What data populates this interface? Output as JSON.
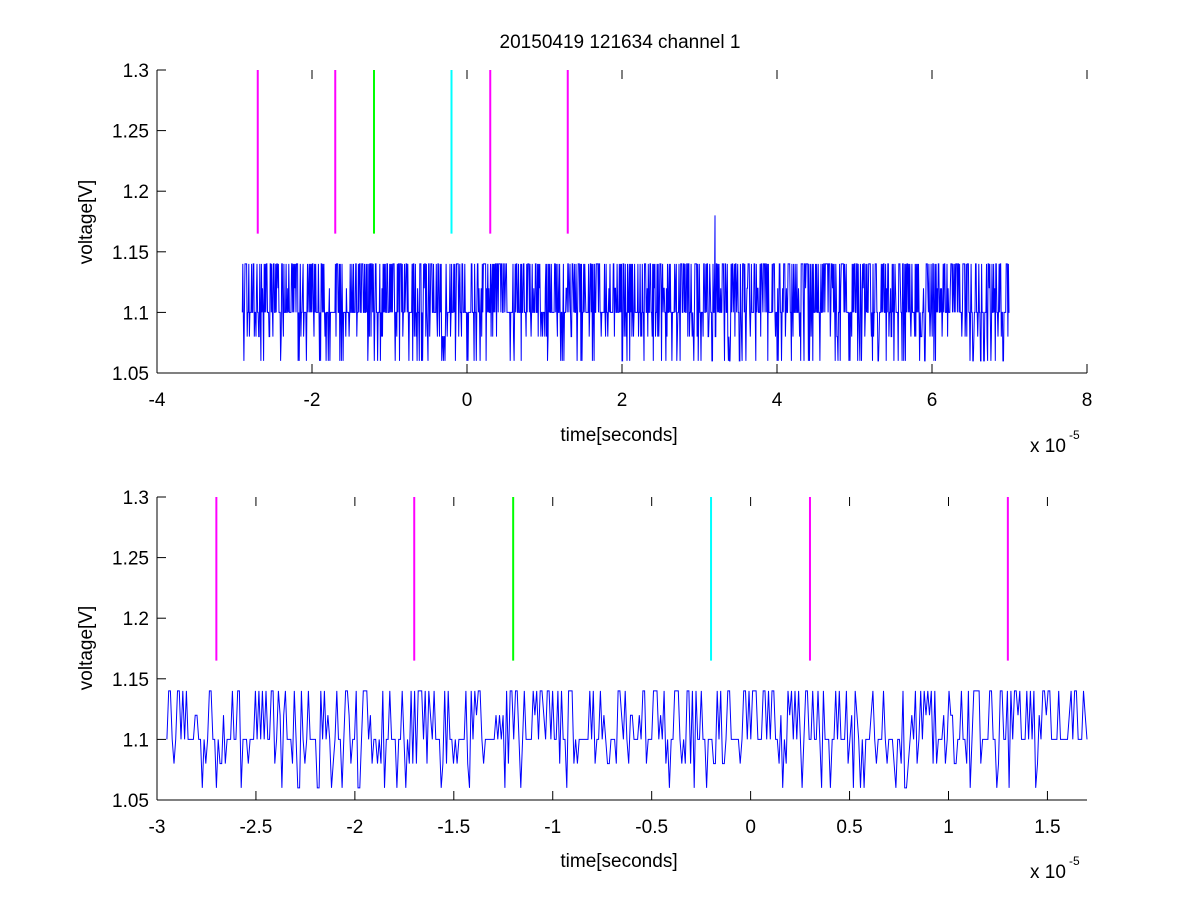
{
  "figure": {
    "title": "20150419 121634 channel 1"
  },
  "chart_data": [
    {
      "type": "line",
      "title": "20150419 121634 channel 1",
      "xlabel": "time[seconds]",
      "ylabel": "voltage[V]",
      "x_multiplier_label": "x 10",
      "x_multiplier_exponent": "-5",
      "xlim": [
        -4,
        8
      ],
      "ylim": [
        1.05,
        1.3
      ],
      "xticks": [
        "-4",
        "-2",
        "0",
        "2",
        "4",
        "6",
        "8"
      ],
      "yticks": [
        "1.05",
        "1.1",
        "1.15",
        "1.2",
        "1.25",
        "1.3"
      ],
      "grid": false,
      "signal": {
        "color": "#0000ff",
        "x_start": -2.9,
        "x_end": 7.0,
        "baseline": 1.1,
        "levels": [
          1.06,
          1.1,
          1.14
        ],
        "spike": {
          "x": 3.2,
          "y": 1.18
        }
      },
      "markers": [
        {
          "x": -2.7,
          "color": "#ff00ff",
          "ymin": 1.165,
          "ymax": 1.3
        },
        {
          "x": -1.7,
          "color": "#ff00ff",
          "ymin": 1.165,
          "ymax": 1.3
        },
        {
          "x": -1.2,
          "color": "#00ff00",
          "ymin": 1.165,
          "ymax": 1.3
        },
        {
          "x": -0.2,
          "color": "#00ffff",
          "ymin": 1.165,
          "ymax": 1.3
        },
        {
          "x": 0.3,
          "color": "#ff00ff",
          "ymin": 1.165,
          "ymax": 1.3
        },
        {
          "x": 1.3,
          "color": "#ff00ff",
          "ymin": 1.165,
          "ymax": 1.3
        }
      ]
    },
    {
      "type": "line",
      "title": "",
      "xlabel": "time[seconds]",
      "ylabel": "voltage[V]",
      "x_multiplier_label": "x 10",
      "x_multiplier_exponent": "-5",
      "xlim": [
        -3,
        1.7
      ],
      "ylim": [
        1.05,
        1.3
      ],
      "xticks": [
        "-3",
        "-2.5",
        "-2",
        "-1.5",
        "-1",
        "-0.5",
        "0",
        "0.5",
        "1",
        "1.5"
      ],
      "yticks": [
        "1.05",
        "1.1",
        "1.15",
        "1.2",
        "1.25",
        "1.3"
      ],
      "grid": false,
      "signal": {
        "color": "#0000ff",
        "x_start": -2.95,
        "x_end": 1.7,
        "baseline": 1.1,
        "levels": [
          1.06,
          1.1,
          1.14
        ]
      },
      "markers": [
        {
          "x": -2.7,
          "color": "#ff00ff",
          "ymin": 1.165,
          "ymax": 1.3
        },
        {
          "x": -1.7,
          "color": "#ff00ff",
          "ymin": 1.165,
          "ymax": 1.3
        },
        {
          "x": -1.2,
          "color": "#00ff00",
          "ymin": 1.165,
          "ymax": 1.3
        },
        {
          "x": -0.2,
          "color": "#00ffff",
          "ymin": 1.165,
          "ymax": 1.3
        },
        {
          "x": 0.3,
          "color": "#ff00ff",
          "ymin": 1.165,
          "ymax": 1.3
        },
        {
          "x": 1.3,
          "color": "#ff00ff",
          "ymin": 1.165,
          "ymax": 1.3
        }
      ]
    }
  ]
}
